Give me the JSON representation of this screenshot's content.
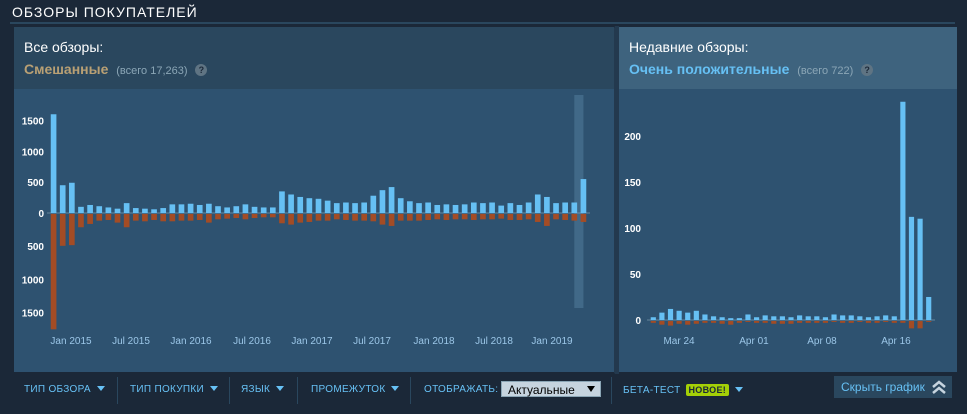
{
  "section_title": "ОБЗОРЫ ПОКУПАТЕЛЕЙ",
  "overall": {
    "label": "Все обзоры:",
    "rating": "Смешанные",
    "count": "(всего 17,263)",
    "rating_color": "#b9a074"
  },
  "recent": {
    "label": "Недавние обзоры:",
    "rating": "Очень положительные",
    "count": "(всего 722)",
    "rating_color": "#66c0f4"
  },
  "help_icon": "?",
  "chart_data": [
    {
      "type": "bar",
      "title": "",
      "ylim": [
        -1750,
        1750
      ],
      "y_ticks": [
        1500,
        1000,
        500,
        0,
        500,
        1000,
        1500
      ],
      "x_tick_labels": [
        "Jan 2015",
        "Jul 2015",
        "Jan 2016",
        "Jul 2016",
        "Jan 2017",
        "Jul 2017",
        "Jan 2018",
        "Jul 2018",
        "Jan 2019"
      ],
      "series": [
        {
          "positive": true,
          "values": [
            1600,
            450,
            490,
            100,
            130,
            110,
            90,
            70,
            160,
            80,
            70,
            60,
            80,
            140,
            140,
            150,
            130,
            150,
            110,
            90,
            110,
            140,
            100,
            90,
            90,
            350,
            300,
            260,
            240,
            230,
            200,
            160,
            170,
            160,
            170,
            280,
            370,
            420,
            240,
            190,
            160,
            170,
            130,
            140,
            130,
            140,
            170,
            160,
            170,
            120,
            160,
            130,
            170,
            300,
            260,
            160,
            170,
            170,
            550
          ]
        },
        {
          "positive": false,
          "values": [
            1740,
            480,
            470,
            200,
            150,
            100,
            90,
            130,
            200,
            100,
            110,
            90,
            110,
            110,
            100,
            100,
            90,
            130,
            80,
            70,
            60,
            80,
            60,
            50,
            50,
            140,
            160,
            130,
            120,
            100,
            100,
            80,
            90,
            100,
            100,
            110,
            160,
            180,
            100,
            100,
            100,
            90,
            80,
            90,
            80,
            80,
            90,
            80,
            80,
            70,
            90,
            90,
            80,
            120,
            180,
            80,
            90,
            100,
            120
          ]
        }
      ]
    },
    {
      "type": "bar",
      "title": "",
      "ylim": [
        -10,
        240
      ],
      "y_ticks": [
        200,
        150,
        100,
        50,
        0
      ],
      "x_tick_labels": [
        "Mar 24",
        "Apr 01",
        "Apr 08",
        "Apr 16"
      ],
      "series": [
        {
          "positive": true,
          "values": [
            3,
            8,
            12,
            10,
            8,
            10,
            6,
            4,
            3,
            2,
            2,
            6,
            3,
            5,
            4,
            4,
            3,
            5,
            4,
            4,
            3,
            6,
            5,
            5,
            4,
            3,
            4,
            5,
            4,
            237,
            112,
            110,
            25
          ]
        },
        {
          "positive": false,
          "values": [
            2,
            4,
            5,
            3,
            4,
            3,
            2,
            2,
            3,
            4,
            2,
            1,
            2,
            2,
            3,
            3,
            3,
            2,
            2,
            2,
            2,
            1,
            2,
            2,
            1,
            2,
            2,
            1,
            2,
            2,
            8,
            8,
            1
          ]
        }
      ]
    }
  ],
  "filters": {
    "review_type": "ТИП ОБЗОРА",
    "purchase_type": "ТИП ПОКУПКИ",
    "language": "ЯЗЫК",
    "period": "ПРОМЕЖУТОК",
    "display_label": "ОТОБРАЖАТЬ:",
    "display_value": "Актуальные",
    "beta": "БЕТА-ТЕСТ",
    "beta_badge": "НОВОЕ!",
    "hide_graph": "Скрыть график"
  },
  "colors": {
    "positive_bar": "#66c0f4",
    "negative_bar": "#a34c25",
    "panel_bg": "#2a475e",
    "chart_bg": "#2e5270",
    "link": "#67c1f5"
  }
}
